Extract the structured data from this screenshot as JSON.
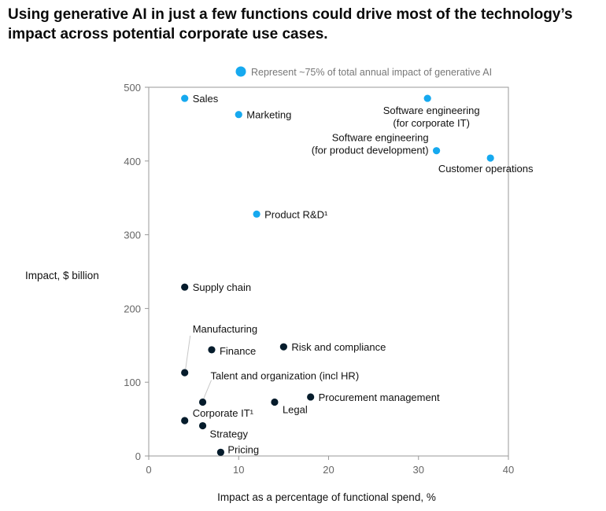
{
  "title": "Using generative AI in just a few functions could drive most of the technology’s impact across potential corporate use cases.",
  "colors": {
    "highlight": "#16a9ef",
    "default": "#051c2c",
    "axis": "#999999",
    "leader": "#c8c8c8"
  },
  "chart_data": {
    "type": "scatter",
    "title": "Using generative AI in just a few functions could drive most of the technology’s impact across potential corporate use cases.",
    "xlabel": "Impact as a percentage of functional spend, %",
    "ylabel": "Impact, $ billion",
    "xlim": [
      0,
      40
    ],
    "ylim": [
      0,
      500
    ],
    "xticks": [
      0,
      10,
      20,
      30,
      40
    ],
    "yticks": [
      0,
      100,
      200,
      300,
      400,
      500
    ],
    "grid": false,
    "legend": {
      "label": "Represent ~75% of total annual impact of generative AI",
      "placement": "top"
    },
    "points": [
      {
        "label": "Sales",
        "x": 4,
        "y": 485,
        "highlight": true
      },
      {
        "label": "Marketing",
        "x": 10,
        "y": 463,
        "highlight": true
      },
      {
        "label": "Software engineering\n(for corporate IT)",
        "x": 31,
        "y": 485,
        "highlight": true
      },
      {
        "label": "Software engineering\n(for product development)",
        "x": 32,
        "y": 414,
        "highlight": true
      },
      {
        "label": "Customer operations",
        "x": 38,
        "y": 404,
        "highlight": true
      },
      {
        "label": "Product R&D¹",
        "x": 12,
        "y": 328,
        "highlight": true
      },
      {
        "label": "Supply chain",
        "x": 4,
        "y": 229,
        "highlight": false
      },
      {
        "label": "Manufacturing",
        "x": 4,
        "y": 113,
        "highlight": false
      },
      {
        "label": "Finance",
        "x": 7,
        "y": 144,
        "highlight": false
      },
      {
        "label": "Risk and compliance",
        "x": 15,
        "y": 148,
        "highlight": false
      },
      {
        "label": "Talent and organization (incl HR)",
        "x": 6,
        "y": 73,
        "highlight": false
      },
      {
        "label": "Procurement management",
        "x": 18,
        "y": 80,
        "highlight": false
      },
      {
        "label": "Legal",
        "x": 14,
        "y": 73,
        "highlight": false
      },
      {
        "label": "Corporate IT¹",
        "x": 4,
        "y": 48,
        "highlight": false
      },
      {
        "label": "Strategy",
        "x": 6,
        "y": 41,
        "highlight": false
      },
      {
        "label": "Pricing",
        "x": 8,
        "y": 5,
        "highlight": false
      }
    ]
  }
}
